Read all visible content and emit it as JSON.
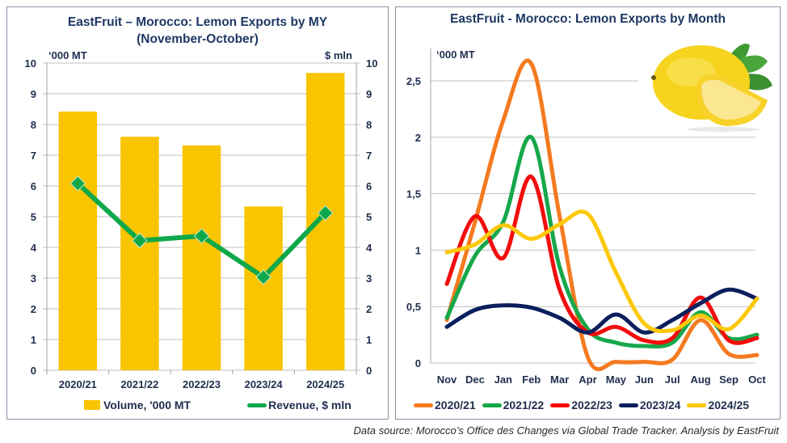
{
  "colors": {
    "bar": "#f9c400",
    "revenue_line": "#0ea84a",
    "series": [
      "#f47a20",
      "#16a84a",
      "#f20d0d",
      "#0b1f5c",
      "#fcc80a"
    ],
    "grid": "#c0c0c0",
    "text": "#1f2d4e"
  },
  "chart_data": [
    {
      "type": "bar",
      "title": "EastFruit – Morocco: Lemon Exports by MY",
      "subtitle": "(November-October)",
      "ylabel": "‘000 MT",
      "y2label": "$ mln",
      "categories": [
        "2020/21",
        "2021/22",
        "2022/23",
        "2023/24",
        "2024/25"
      ],
      "ylim": [
        0,
        10
      ],
      "y2lim": [
        0,
        10
      ],
      "yticks": [
        "0",
        "1",
        "2",
        "3",
        "4",
        "5",
        "6",
        "7",
        "8",
        "9",
        "10"
      ],
      "grid": true,
      "legend_position": "bottom",
      "series": [
        {
          "name": "Volume, '000 MT",
          "type": "bar",
          "axis": "left",
          "values": [
            8.42,
            7.6,
            7.32,
            5.33,
            9.68
          ]
        },
        {
          "name": "Revenue, $ mln",
          "type": "line",
          "axis": "right",
          "marker": "diamond",
          "values": [
            6.08,
            4.22,
            4.37,
            3.03,
            5.12
          ]
        }
      ]
    },
    {
      "type": "line",
      "title": "EastFruit - Morocco: Lemon Exports by Month",
      "ylabel": "‘000 MT",
      "categories": [
        "Nov",
        "Dec",
        "Jan",
        "Feb",
        "Mar",
        "Apr",
        "May",
        "Jun",
        "Jul",
        "Aug",
        "Sep",
        "Oct"
      ],
      "ylim": [
        0,
        2.7
      ],
      "yticks": [
        "0",
        "0,5",
        "1",
        "1,5",
        "2",
        "2,5"
      ],
      "ytick_values": [
        0,
        0.5,
        1,
        1.5,
        2,
        2.5
      ],
      "grid": true,
      "smooth": true,
      "legend_position": "bottom",
      "series": [
        {
          "name": "2020/21",
          "values": [
            0.38,
            1.25,
            2.15,
            2.65,
            1.3,
            0.05,
            0.01,
            0.01,
            0.03,
            0.38,
            0.08,
            0.07
          ]
        },
        {
          "name": "2021/22",
          "values": [
            0.4,
            0.95,
            1.25,
            2.0,
            0.85,
            0.3,
            0.18,
            0.15,
            0.18,
            0.45,
            0.22,
            0.25
          ]
        },
        {
          "name": "2022/23",
          "values": [
            0.7,
            1.3,
            0.93,
            1.65,
            0.65,
            0.27,
            0.32,
            0.2,
            0.22,
            0.58,
            0.2,
            0.22
          ]
        },
        {
          "name": "2023/24",
          "values": [
            0.32,
            0.47,
            0.51,
            0.49,
            0.4,
            0.27,
            0.43,
            0.27,
            0.38,
            0.53,
            0.65,
            0.57
          ]
        },
        {
          "name": "2024/25",
          "values": [
            0.98,
            1.05,
            1.22,
            1.1,
            1.23,
            1.32,
            0.8,
            0.35,
            0.29,
            0.42,
            0.3,
            0.57
          ]
        }
      ]
    }
  ],
  "source": "Data source: Morocco’s Office des Changes via Global Trade Tracker. Analysis by EastFruit",
  "image": {
    "icon": "lemon-icon"
  }
}
